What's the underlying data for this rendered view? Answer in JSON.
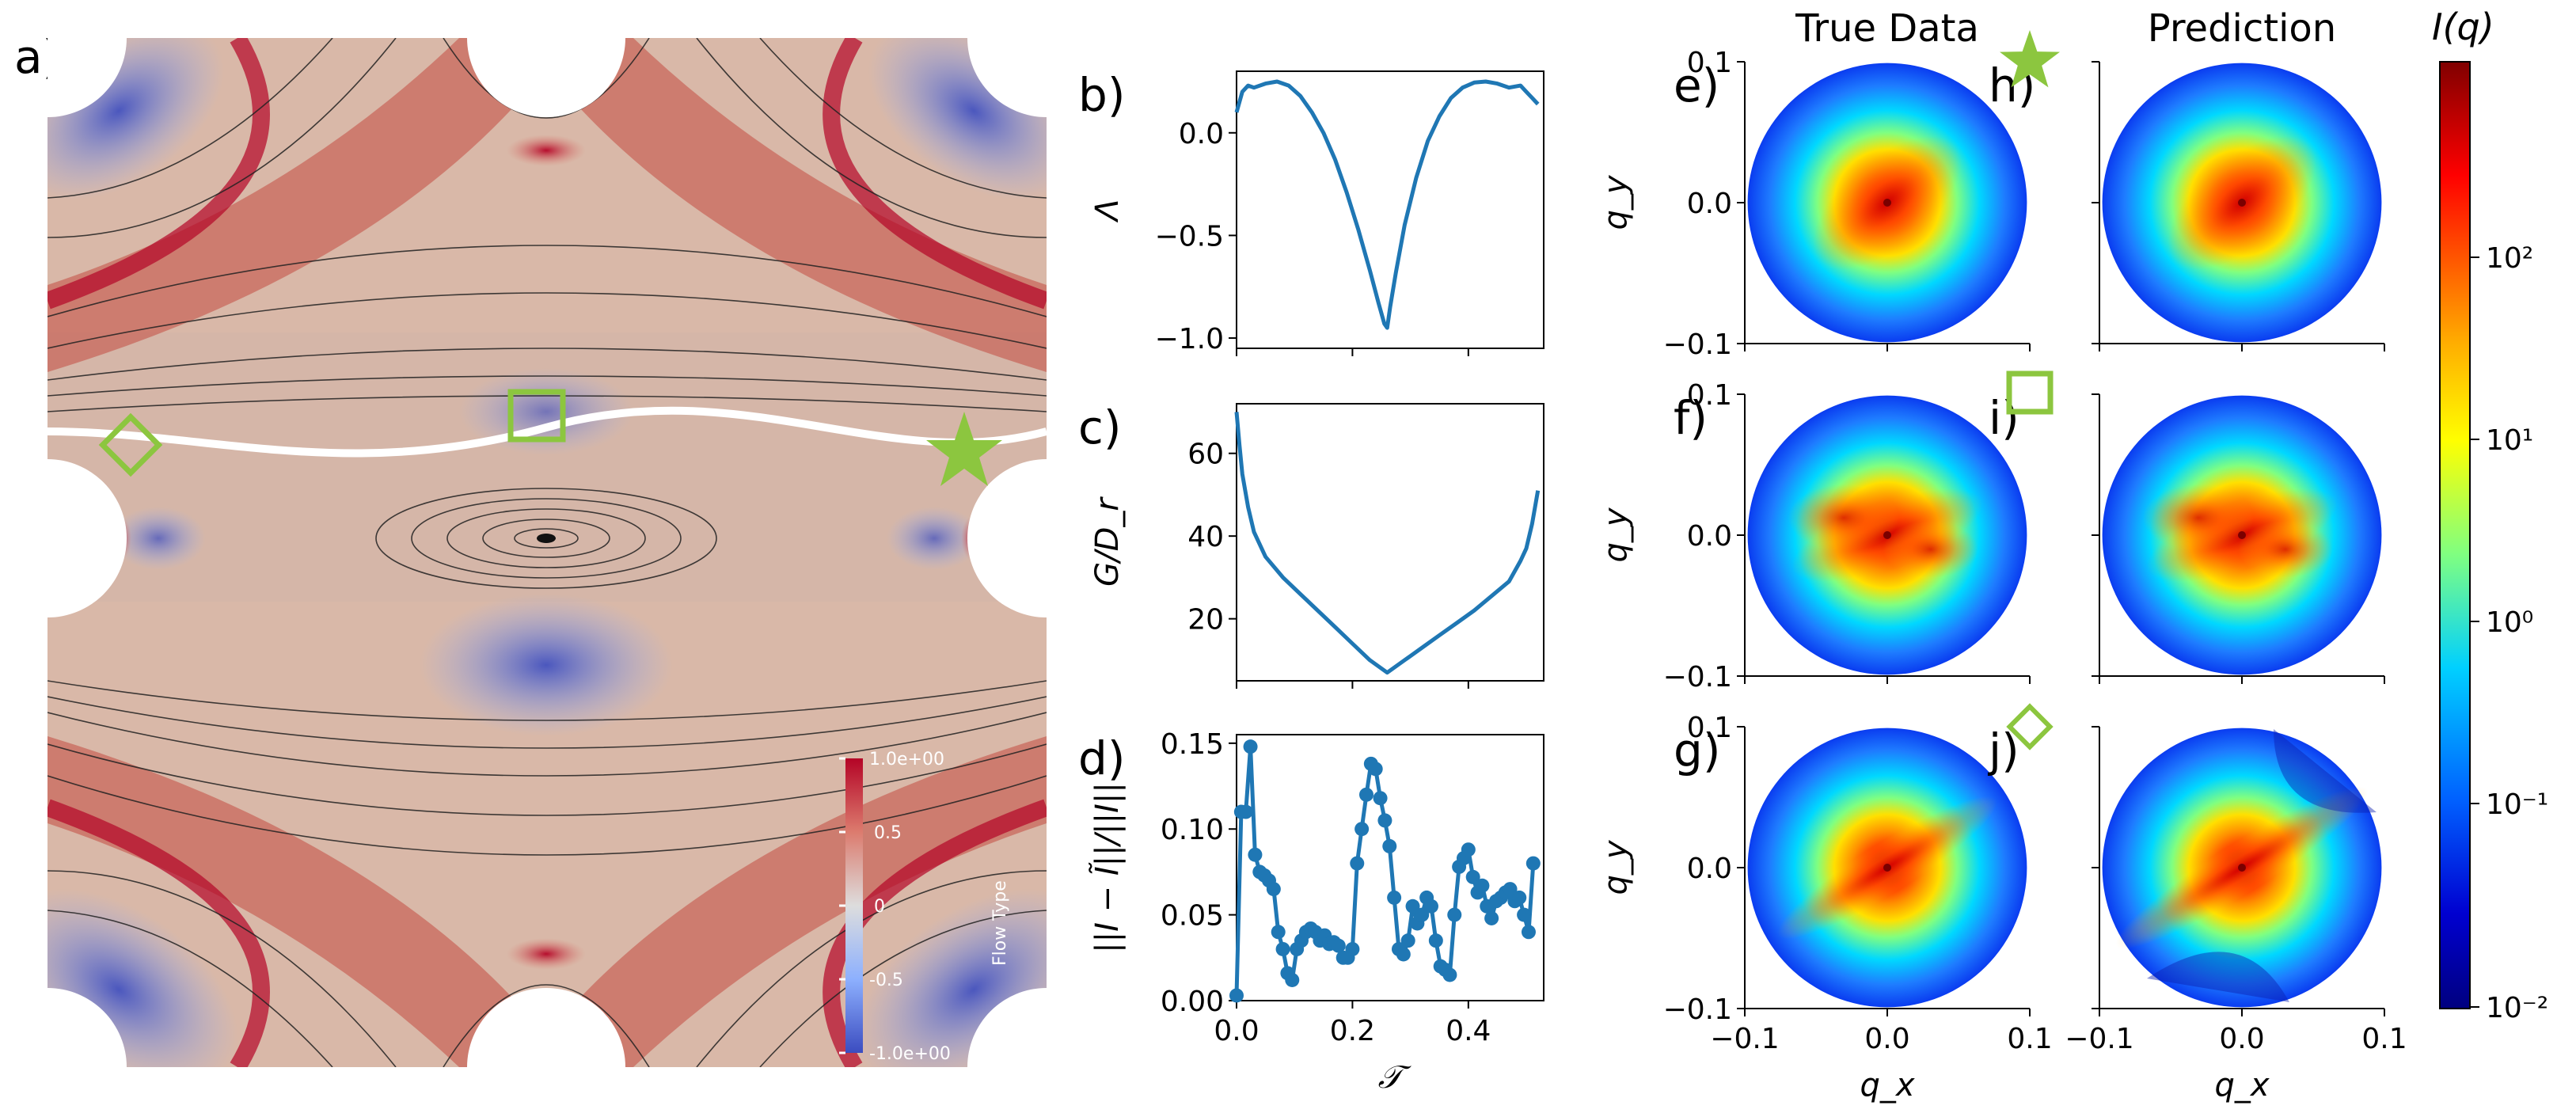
{
  "colors": {
    "series": "#1f77b4",
    "marker_green": "#8cc63f",
    "flow_red": "#b40426",
    "flow_blue": "#3b4cc0",
    "flow_mid": "#dddddd"
  },
  "panel_a": {
    "label": "a)",
    "colorbar": {
      "title": "Flow Type",
      "ticks": [
        "1.0e+00",
        "0.5",
        "0",
        "-0.5",
        "-1.0e+00"
      ]
    },
    "markers": [
      "diamond",
      "square",
      "star"
    ]
  },
  "chart_data": [
    {
      "id": "b",
      "type": "line",
      "label": "b)",
      "ylabel": "Λ",
      "xlim": [
        0,
        0.53
      ],
      "ylim": [
        -1.05,
        0.3
      ],
      "xticks": [
        0.0,
        0.2,
        0.4
      ],
      "yticks": [
        0.0,
        -0.5,
        -1.0
      ],
      "ytick_labels": [
        "0.0",
        "−0.5",
        "−1.0"
      ],
      "x": [
        0.0,
        0.01,
        0.02,
        0.03,
        0.05,
        0.07,
        0.09,
        0.11,
        0.13,
        0.15,
        0.17,
        0.19,
        0.21,
        0.23,
        0.245,
        0.255,
        0.26,
        0.265,
        0.275,
        0.29,
        0.31,
        0.33,
        0.35,
        0.37,
        0.39,
        0.41,
        0.43,
        0.45,
        0.47,
        0.49,
        0.5,
        0.51,
        0.52
      ],
      "y": [
        0.1,
        0.2,
        0.23,
        0.22,
        0.24,
        0.25,
        0.23,
        0.18,
        0.1,
        0.0,
        -0.13,
        -0.29,
        -0.47,
        -0.67,
        -0.83,
        -0.93,
        -0.95,
        -0.85,
        -0.68,
        -0.45,
        -0.22,
        -0.04,
        0.08,
        0.17,
        0.22,
        0.245,
        0.25,
        0.24,
        0.22,
        0.23,
        0.2,
        0.17,
        0.14
      ]
    },
    {
      "id": "c",
      "type": "line",
      "label": "c)",
      "ylabel": "G/D_r",
      "xlim": [
        0,
        0.53
      ],
      "ylim": [
        5,
        72
      ],
      "xticks": [
        0.0,
        0.2,
        0.4
      ],
      "yticks": [
        20,
        40,
        60
      ],
      "ytick_labels": [
        "20",
        "40",
        "60"
      ],
      "x": [
        0.0,
        0.005,
        0.01,
        0.02,
        0.03,
        0.05,
        0.08,
        0.11,
        0.14,
        0.17,
        0.2,
        0.23,
        0.26,
        0.29,
        0.32,
        0.35,
        0.38,
        0.41,
        0.44,
        0.47,
        0.49,
        0.5,
        0.51,
        0.52
      ],
      "y": [
        70,
        62,
        55,
        47,
        41,
        35,
        30,
        26,
        22,
        18,
        14,
        10,
        7,
        10,
        13,
        16,
        19,
        22,
        25.5,
        29,
        34,
        37,
        43,
        51
      ]
    },
    {
      "id": "d",
      "type": "line",
      "label": "d)",
      "ylabel": "||I − Ĩ||/||I||",
      "xlabel": "𝒯",
      "xlim": [
        0,
        0.53
      ],
      "ylim": [
        0,
        0.155
      ],
      "xticks": [
        0.0,
        0.2,
        0.4
      ],
      "xtick_labels": [
        "0.0",
        "0.2",
        "0.4"
      ],
      "yticks": [
        0.0,
        0.05,
        0.1,
        0.15
      ],
      "ytick_labels": [
        "0.00",
        "0.05",
        "0.10",
        "0.15"
      ],
      "x": [
        0.0,
        0.008,
        0.016,
        0.024,
        0.032,
        0.04,
        0.048,
        0.056,
        0.064,
        0.072,
        0.08,
        0.088,
        0.096,
        0.104,
        0.112,
        0.12,
        0.128,
        0.136,
        0.144,
        0.152,
        0.16,
        0.168,
        0.176,
        0.184,
        0.192,
        0.2,
        0.208,
        0.216,
        0.224,
        0.232,
        0.24,
        0.248,
        0.256,
        0.264,
        0.272,
        0.28,
        0.288,
        0.296,
        0.304,
        0.312,
        0.32,
        0.328,
        0.336,
        0.344,
        0.352,
        0.36,
        0.368,
        0.376,
        0.384,
        0.392,
        0.4,
        0.408,
        0.416,
        0.424,
        0.432,
        0.44,
        0.448,
        0.456,
        0.464,
        0.472,
        0.48,
        0.488,
        0.496,
        0.504,
        0.512
      ],
      "y": [
        0.003,
        0.11,
        0.11,
        0.148,
        0.085,
        0.075,
        0.073,
        0.07,
        0.065,
        0.04,
        0.03,
        0.016,
        0.012,
        0.03,
        0.035,
        0.04,
        0.042,
        0.04,
        0.035,
        0.038,
        0.033,
        0.034,
        0.032,
        0.025,
        0.025,
        0.03,
        0.08,
        0.1,
        0.12,
        0.138,
        0.135,
        0.118,
        0.105,
        0.09,
        0.06,
        0.03,
        0.027,
        0.035,
        0.055,
        0.045,
        0.05,
        0.06,
        0.055,
        0.035,
        0.02,
        0.018,
        0.015,
        0.05,
        0.078,
        0.083,
        0.088,
        0.072,
        0.063,
        0.067,
        0.055,
        0.048,
        0.058,
        0.06,
        0.063,
        0.065,
        0.058,
        0.06,
        0.05,
        0.04,
        0.08
      ]
    },
    {
      "id": "scattering",
      "type": "heatmap",
      "col_titles": [
        "True Data",
        "Prediction"
      ],
      "panel_labels_true": [
        "e)",
        "f)",
        "g)"
      ],
      "panel_labels_pred": [
        "h)",
        "i)",
        "j)"
      ],
      "row_markers": [
        "star",
        "square",
        "diamond"
      ],
      "xlabel": "q_x",
      "ylabel": "q_y",
      "xlim": [
        -0.1,
        0.1
      ],
      "ylim": [
        -0.1,
        0.1
      ],
      "tick_labels": [
        "−0.1",
        "0.0",
        "0.1"
      ],
      "colorbar_title": "I(q)",
      "colorbar_ticks": [
        "10²",
        "10¹",
        "10⁰",
        "10⁻¹",
        "10⁻²"
      ],
      "colorbar_range": [
        0.01,
        600
      ]
    }
  ]
}
